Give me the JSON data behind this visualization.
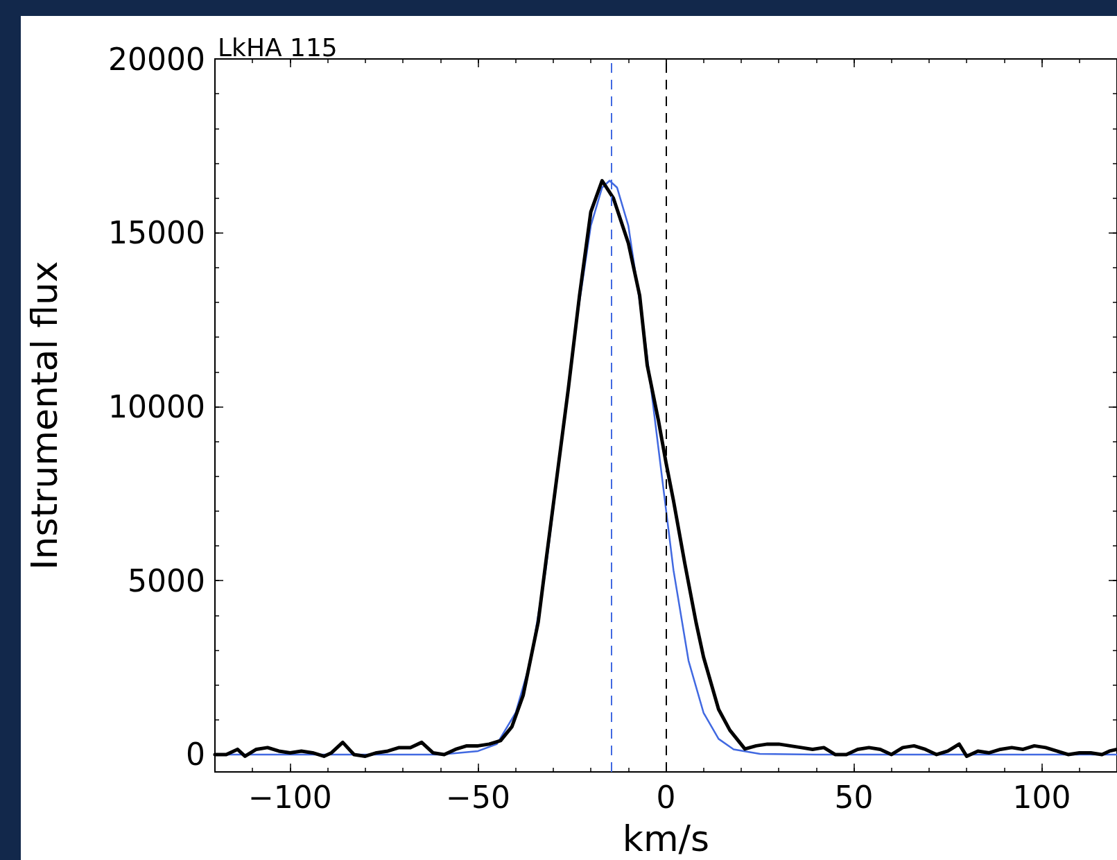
{
  "chart_data": {
    "type": "line",
    "title": "LkHA 115",
    "xlabel": "km/s",
    "ylabel": "Instrumental flux",
    "xlim": [
      -120,
      120
    ],
    "xticks": [
      {
        "value": -100,
        "label": "−100"
      },
      {
        "value": -50,
        "label": "−50"
      },
      0,
      50,
      100
    ],
    "ylim": [
      -500,
      20000
    ],
    "yticks": [
      0,
      5000,
      10000,
      15000,
      20000
    ],
    "grid": false,
    "marker": "none",
    "series": [
      {
        "color": "#4169e1",
        "line_style": "solid",
        "x": [
          -120,
          -60,
          -50,
          -45,
          -40,
          -36,
          -32,
          -28,
          -24,
          -20,
          -17,
          -15,
          -13,
          -10,
          -6,
          -2,
          2,
          6,
          10,
          14,
          18,
          25,
          40,
          120
        ],
        "values": [
          0,
          0,
          100,
          300,
          1200,
          2700,
          5300,
          8800,
          12300,
          15200,
          16300,
          16500,
          16300,
          15200,
          12300,
          8800,
          5300,
          2700,
          1200,
          450,
          150,
          20,
          0,
          0
        ]
      },
      {
        "color": "#000000",
        "line_style": "solid",
        "x": [
          -120,
          -117,
          -114,
          -112,
          -109,
          -106,
          -103,
          -100,
          -97,
          -94,
          -91,
          -89,
          -86,
          -83,
          -80,
          -77,
          -74,
          -71,
          -68,
          -65,
          -62,
          -59,
          -56,
          -53,
          -50,
          -47,
          -44,
          -41,
          -38,
          -34,
          -32,
          -29,
          -26,
          -23,
          -20,
          -17,
          -14,
          -10,
          -7,
          -5,
          -2,
          0,
          2,
          5,
          8,
          10,
          14,
          17,
          21,
          24,
          27,
          30,
          33,
          36,
          39,
          42,
          45,
          48,
          51,
          54,
          57,
          60,
          63,
          66,
          69,
          72,
          75,
          78,
          80,
          83,
          86,
          89,
          92,
          95,
          98,
          101,
          104,
          107,
          110,
          113,
          116,
          118,
          120
        ],
        "values": [
          0,
          0,
          150,
          -50,
          150,
          200,
          100,
          50,
          100,
          50,
          -50,
          50,
          350,
          0,
          -50,
          50,
          100,
          200,
          200,
          350,
          50,
          0,
          150,
          250,
          250,
          300,
          400,
          800,
          1700,
          3800,
          5500,
          8000,
          10500,
          13200,
          15600,
          16500,
          16000,
          14700,
          13200,
          11200,
          9600,
          8400,
          7300,
          5500,
          3800,
          2800,
          1300,
          700,
          160,
          250,
          300,
          300,
          250,
          200,
          150,
          200,
          0,
          0,
          150,
          200,
          150,
          0,
          200,
          250,
          150,
          0,
          100,
          300,
          -50,
          100,
          50,
          150,
          200,
          150,
          250,
          200,
          100,
          0,
          50,
          50,
          0,
          100,
          150
        ]
      }
    ],
    "ref_lines": [
      {
        "axis": "x",
        "value": -14.5,
        "color": "#4169e1",
        "line_style": "dashed"
      },
      {
        "axis": "x",
        "value": 0,
        "color": "#000000",
        "line_style": "dashed"
      }
    ]
  }
}
